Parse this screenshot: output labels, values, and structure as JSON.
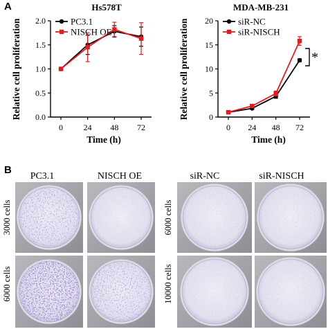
{
  "panel_a_label": "A",
  "panel_b_label": "B",
  "chart_data": [
    {
      "type": "line",
      "title": "Hs578T",
      "xlabel": "Time (h)",
      "ylabel": "Relative cell proliferation",
      "x": [
        0,
        24,
        48,
        72
      ],
      "xticks": [
        "0",
        "24",
        "48",
        "72"
      ],
      "yticks": [
        "0.0",
        "0.5",
        "1.0",
        "1.5",
        "2.0"
      ],
      "ylim": [
        0,
        2.0
      ],
      "legend_position": "top-left",
      "series": [
        {
          "name": "PC3.1",
          "color": "#000000",
          "marker": "circle",
          "values": [
            1.0,
            1.5,
            1.78,
            1.67
          ],
          "errors": [
            0.0,
            0.2,
            0.12,
            0.2
          ]
        },
        {
          "name": "NISCH OE",
          "color": "#e8191c",
          "marker": "square",
          "values": [
            1.0,
            1.45,
            1.82,
            1.63
          ],
          "errors": [
            0.0,
            0.3,
            0.15,
            0.33
          ]
        }
      ]
    },
    {
      "type": "line",
      "title": "MDA-MB-231",
      "xlabel": "Time (h)",
      "ylabel": "Relative cell proliferation",
      "x": [
        0,
        24,
        48,
        72
      ],
      "xticks": [
        "0",
        "24",
        "48",
        "72"
      ],
      "yticks": [
        "0",
        "5",
        "10",
        "15",
        "20"
      ],
      "ylim": [
        0,
        20
      ],
      "legend_position": "top-left",
      "significance": "*",
      "series": [
        {
          "name": "siR-NC",
          "color": "#000000",
          "marker": "circle",
          "values": [
            1.0,
            1.8,
            4.3,
            11.8
          ],
          "errors": [
            0.1,
            0.2,
            0.4,
            0.3
          ]
        },
        {
          "name": "siR-NISCH",
          "color": "#e8191c",
          "marker": "square",
          "values": [
            1.0,
            2.3,
            4.9,
            15.8
          ],
          "errors": [
            0.1,
            0.3,
            0.5,
            0.9
          ]
        }
      ]
    }
  ],
  "colony_panels": {
    "left": {
      "columns": [
        "PC3.1",
        "NISCH OE"
      ],
      "rows": [
        "3000 cells",
        "6000 cells"
      ]
    },
    "right": {
      "columns": [
        "siR-NC",
        "siR-NISCH"
      ],
      "rows": [
        "6000 cells",
        "10000 cells"
      ]
    },
    "stain_color": "#8a7bbf",
    "well_color": "#e3e0ef"
  }
}
